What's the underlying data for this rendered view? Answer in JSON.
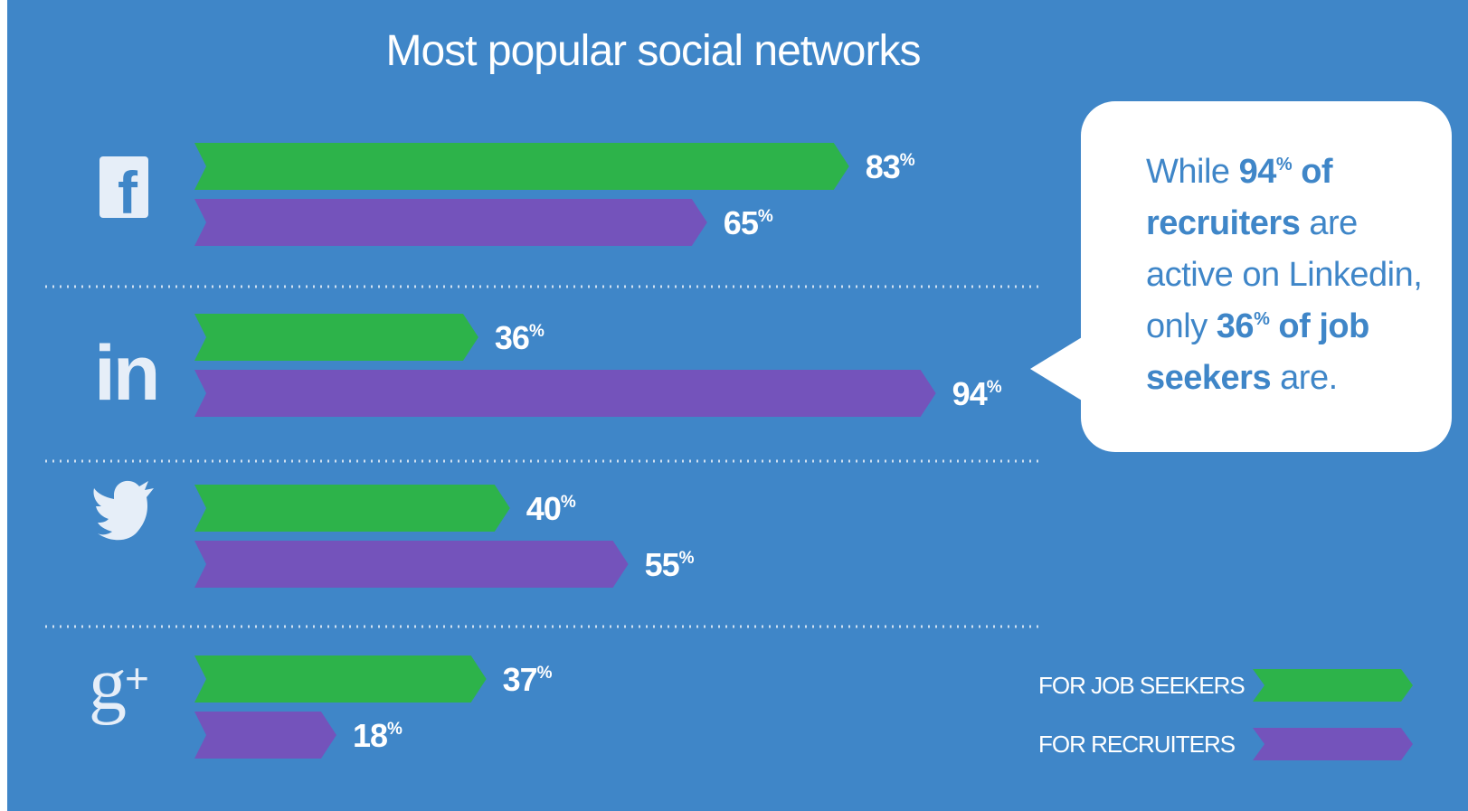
{
  "chart_data": {
    "type": "bar",
    "orientation": "horizontal",
    "title": "Most popular social networks",
    "categories": [
      "facebook",
      "linkedin",
      "twitter",
      "google-plus"
    ],
    "series": [
      {
        "name": "FOR JOB SEEKERS",
        "values": [
          83,
          36,
          40,
          37
        ],
        "color": "#2db34a"
      },
      {
        "name": "FOR RECRUITERS",
        "values": [
          65,
          94,
          55,
          18
        ],
        "color": "#7453bb"
      }
    ],
    "value_suffix": "%",
    "xlim": [
      0,
      100
    ],
    "grid": false,
    "legend_position": "bottom-right",
    "annotation": {
      "parts": [
        {
          "text": "While ",
          "bold": false
        },
        {
          "text": "94",
          "bold": true
        },
        {
          "text": "%",
          "bold": true,
          "sup": true
        },
        {
          "text": " of recruiters",
          "bold": true
        },
        {
          "text": " are active on Linkedin, only ",
          "bold": false
        },
        {
          "text": "36",
          "bold": true
        },
        {
          "text": "%",
          "bold": true,
          "sup": true
        },
        {
          "text": " of job seekers",
          "bold": true
        },
        {
          "text": " are.",
          "bold": false
        }
      ]
    }
  },
  "colors": {
    "background": "#3f86c8",
    "job_seekers": "#2db34a",
    "recruiters": "#7453bb",
    "text": "#ffffff"
  },
  "icons": [
    "facebook-icon",
    "linkedin-icon",
    "twitter-icon",
    "google-plus-icon"
  ]
}
